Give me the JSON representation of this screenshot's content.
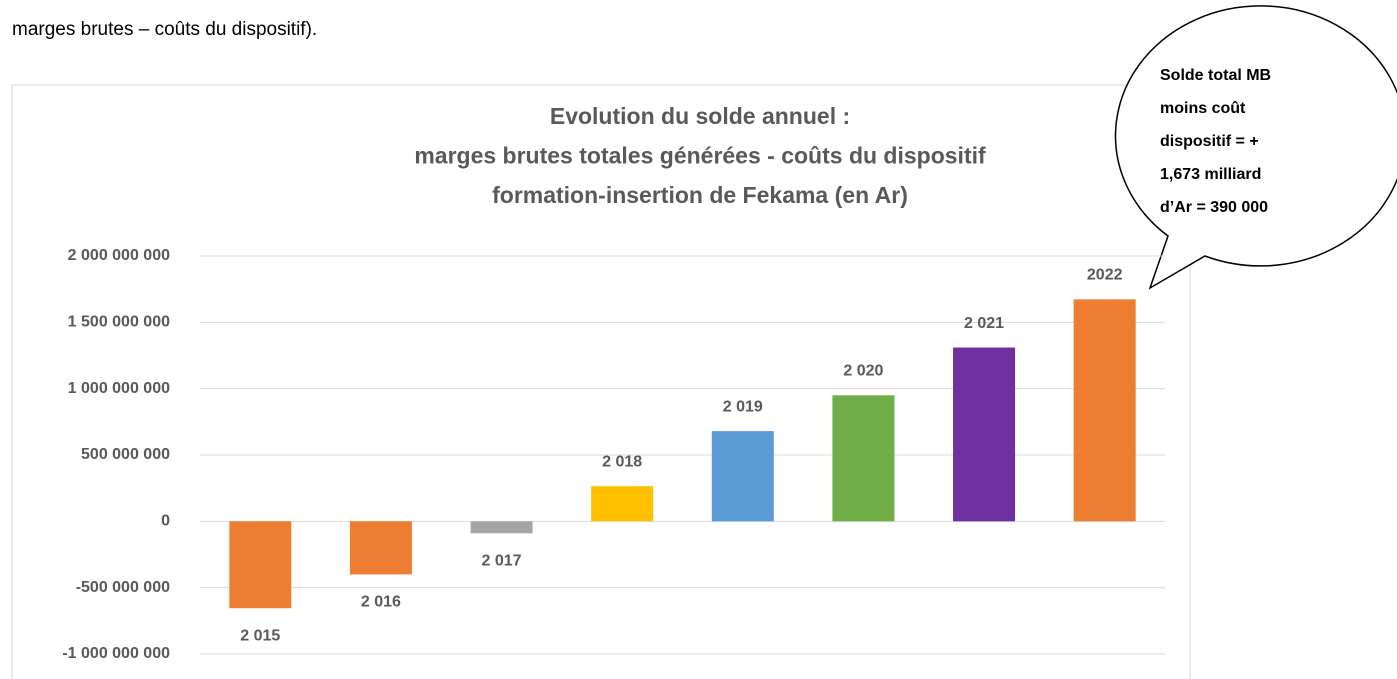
{
  "intro_text": "marges brutes – coûts du dispositif).",
  "chart_data": {
    "type": "bar",
    "title": [
      "Evolution du solde annuel :",
      "marges brutes totales générées - coûts du dispositif",
      "formation-insertion de Fekama (en Ar)"
    ],
    "categories": [
      "2 015",
      "2 016",
      "2 017",
      "2 018",
      "2 019",
      "2 020",
      "2 021",
      "2022"
    ],
    "values": [
      -655000000,
      -400000000,
      -90000000,
      265000000,
      680000000,
      950000000,
      1310000000,
      1673390000
    ],
    "colors": [
      "#ed7d31",
      "#ed7d31",
      "#a5a5a5",
      "#ffc000",
      "#5b9bd5",
      "#70ad47",
      "#7030a0",
      "#ed7d31"
    ],
    "ylim": [
      -1000000000,
      2000000000
    ],
    "yticks": [
      {
        "value": -1000000000,
        "label": "-1 000 000 000"
      },
      {
        "value": -500000000,
        "label": "-500 000 000"
      },
      0,
      {
        "value": 500000000,
        "label": "500 000 000"
      },
      {
        "value": 1000000000,
        "label": "1 000 000 000"
      },
      {
        "value": 1500000000,
        "label": "1 500 000 000"
      },
      {
        "value": 2000000000,
        "label": "2 000 000 000"
      }
    ],
    "grid": true,
    "annotation": [
      "Solde total MB",
      "moins coût",
      "dispositif = +",
      "1,673 milliard",
      "d’Ar = 390 000"
    ]
  }
}
